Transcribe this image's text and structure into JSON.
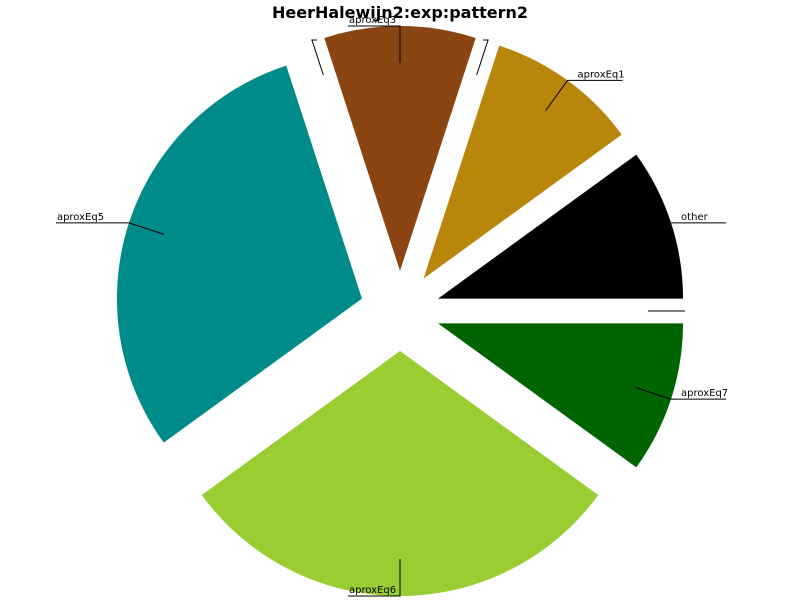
{
  "chart_data": {
    "type": "pie",
    "title": "HeerHalewijn2:exp:pattern2",
    "slices": [
      {
        "label": "other",
        "value": 10,
        "color": "#000000",
        "start_deg": 0
      },
      {
        "label": "aproxEq1",
        "value": 10,
        "color": "#B8860B"
      },
      {
        "label": "",
        "value": 0,
        "color": "#B8860B"
      },
      {
        "label": "aproxEq3",
        "value": 10,
        "color": "#8B4513"
      },
      {
        "label": "",
        "value": 0,
        "color": "#8B4513"
      },
      {
        "label": "aproxEq5",
        "value": 30,
        "color": "#008B8B"
      },
      {
        "label": "aproxEq6",
        "value": 30,
        "color": "#9ACD32"
      },
      {
        "label": "aproxEq7",
        "value": 10,
        "color": "#006400"
      },
      {
        "label": "",
        "value": 0,
        "color": "#006400"
      }
    ]
  }
}
